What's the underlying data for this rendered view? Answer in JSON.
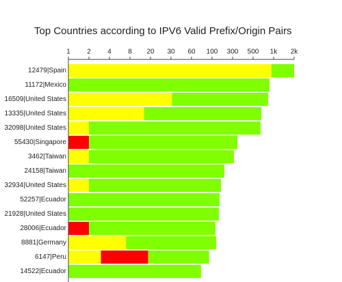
{
  "chart_data": {
    "type": "stacked-bar-horizontal",
    "title": "Top Countries according to IPV6 Valid Prefix/Origin Pairs",
    "categories": [
      "12479|Spain",
      "11172|Mexico",
      "16509|United States",
      "13335|United States",
      "32098|United States",
      "55430|Singapore",
      "3462|Taiwan",
      "24158|Taiwan",
      "32934|United States",
      "52257|Ecuador",
      "21928|United States",
      "28006|Ecuador",
      "8881|Germany",
      "6147|Peru",
      "14522|Ecuador"
    ],
    "series": [
      {
        "color": "#ffff00",
        "values": [
          930,
          null,
          31,
          15,
          2,
          null,
          2,
          null,
          2,
          null,
          null,
          null,
          7,
          3,
          null
        ]
      },
      {
        "color": "#ff0000",
        "values": [
          null,
          null,
          null,
          null,
          null,
          2,
          null,
          null,
          null,
          null,
          null,
          2,
          null,
          15,
          null
        ]
      },
      {
        "color": "#7fff00",
        "values": [
          1070,
          870,
          799,
          645,
          643,
          336,
          308,
          193,
          159,
          150,
          144,
          118,
          118,
          75,
          76
        ]
      }
    ],
    "xlim": [
      1,
      2000
    ],
    "xticks": [
      1,
      2,
      4,
      8,
      20,
      30,
      60,
      100,
      300,
      500,
      {
        "value": 1000,
        "label": "1k"
      },
      {
        "value": 2000,
        "label": "2k"
      }
    ]
  }
}
